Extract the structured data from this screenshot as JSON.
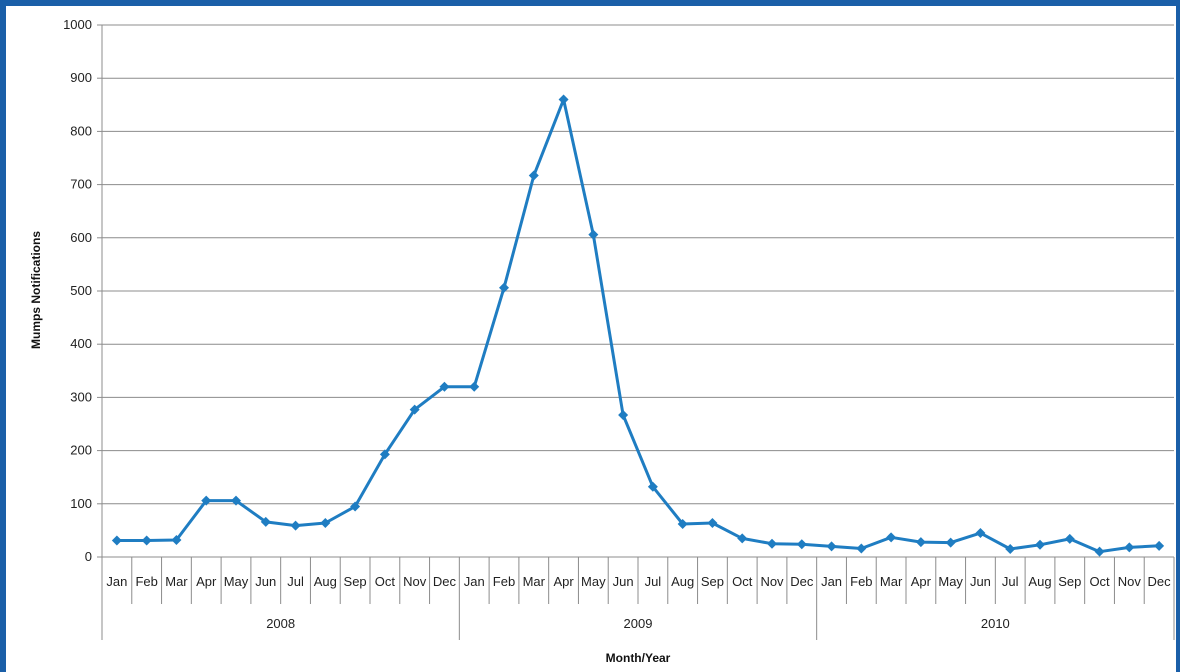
{
  "chart_data": {
    "type": "line",
    "title": "",
    "xlabel": "Month/Year",
    "ylabel": "Mumps Notifications",
    "ylim": [
      0,
      1000
    ],
    "yticks": [
      0,
      100,
      200,
      300,
      400,
      500,
      600,
      700,
      800,
      900,
      1000
    ],
    "grid": true,
    "legend": "none",
    "months": [
      "Jan",
      "Feb",
      "Mar",
      "Apr",
      "May",
      "Jun",
      "Jul",
      "Aug",
      "Sep",
      "Oct",
      "Nov",
      "Dec"
    ],
    "years": [
      "2008",
      "2009",
      "2010"
    ],
    "series": [
      {
        "color": "#1f7dc2",
        "values": [
          31,
          31,
          32,
          106,
          106,
          66,
          59,
          64,
          95,
          193,
          277,
          320,
          320,
          506,
          717,
          860,
          606,
          267,
          132,
          62,
          64,
          35,
          25,
          24,
          20,
          16,
          37,
          28,
          27,
          45,
          15,
          23,
          34,
          10,
          18,
          21
        ]
      }
    ]
  }
}
